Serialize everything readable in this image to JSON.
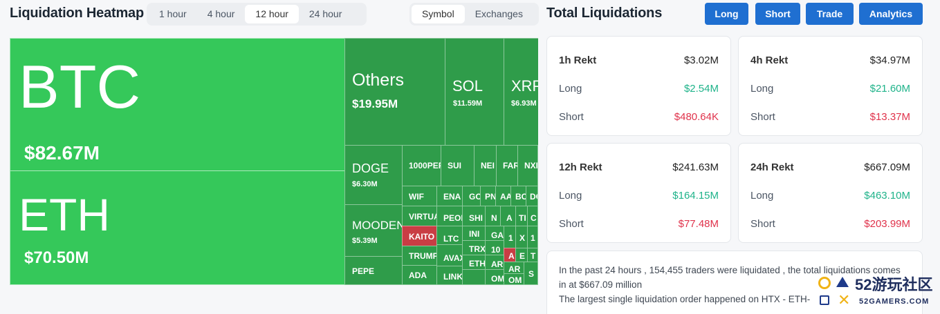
{
  "heatmap": {
    "title": "Liquidation Heatmap",
    "timeframes": [
      "1 hour",
      "4 hour",
      "12 hour",
      "24 hour"
    ],
    "active_timeframe": "12 hour",
    "views": [
      "Symbol",
      "Exchanges"
    ],
    "active_view": "Symbol",
    "tiles": {
      "btc": {
        "symbol": "BTC",
        "value": "$82.67M"
      },
      "eth": {
        "symbol": "ETH",
        "value": "$70.50M"
      },
      "others": {
        "symbol": "Others",
        "value": "$19.95M"
      },
      "sol": {
        "symbol": "SOL",
        "value": "$11.59M"
      },
      "xrp": {
        "symbol": "XRP",
        "value": "$6.93M"
      },
      "doge": {
        "symbol": "DOGE",
        "value": "$6.30M"
      },
      "moodeng": {
        "symbol": "MOODEN",
        "value": "$5.39M"
      },
      "pepe": {
        "symbol": "PEPE"
      },
      "small": [
        "1000PEP",
        "SUI",
        "NEI",
        "FAR",
        "NXP",
        "WIF",
        "ENA",
        "GO",
        "PN",
        "AA",
        "BC",
        "DO",
        "VIRTUA",
        "PEOP",
        "SHI",
        "N",
        "A",
        "TI",
        "C",
        "KAITO",
        "LTC",
        "INI",
        "GA",
        "1",
        "X",
        "1",
        "TRUMP",
        "AVAX",
        "TRX",
        "10",
        "A",
        "E",
        "T",
        "ADA",
        "LINK",
        "ETH",
        "AR",
        "AR",
        "OM",
        "OM",
        "S"
      ]
    }
  },
  "totals": {
    "title": "Total Liquidations",
    "buttons": [
      "Long",
      "Short",
      "Trade",
      "Analytics"
    ],
    "long_label": "Long",
    "short_label": "Short",
    "cards": [
      {
        "label": "1h Rekt",
        "total": "$3.02M",
        "long": "$2.54M",
        "short": "$480.64K"
      },
      {
        "label": "4h Rekt",
        "total": "$34.97M",
        "long": "$21.60M",
        "short": "$13.37M"
      },
      {
        "label": "12h Rekt",
        "total": "$241.63M",
        "long": "$164.15M",
        "short": "$77.48M"
      },
      {
        "label": "24h Rekt",
        "total": "$667.09M",
        "long": "$463.10M",
        "short": "$203.99M"
      }
    ],
    "summary": [
      "In the past 24 hours , 154,455 traders were liquidated , the total liquidations comes",
      "in at $667.09 million",
      "The largest single liquidation order happened on HTX - ETH-"
    ]
  },
  "watermark": {
    "brand": "52游玩社区",
    "url": "52GAMERS.COM"
  },
  "colors": {
    "accent": "#1f6fd1",
    "tile_green": "#35c85a",
    "tile_dark": "#2f9c4a",
    "tile_red": "#c93d44",
    "long": "#1fb38a",
    "short": "#e0324b"
  }
}
